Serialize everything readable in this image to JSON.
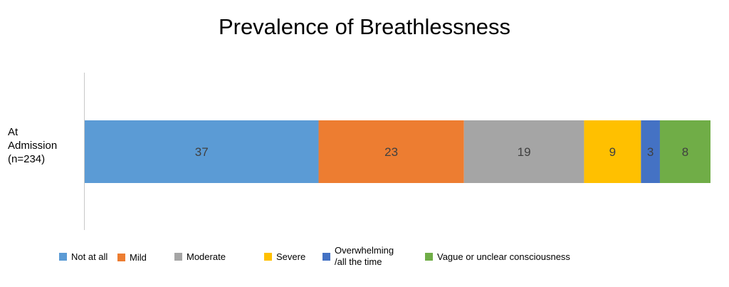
{
  "chart_data": {
    "type": "bar",
    "orientation": "horizontal",
    "stacked": true,
    "title": "Prevalence of Breathlessness",
    "categories": [
      "At Admission (n=234)"
    ],
    "category_label_lines": [
      "At",
      "Admission",
      "(n=234)"
    ],
    "series": [
      {
        "name": "Not at all",
        "values": [
          37
        ],
        "color": "#5b9bd5"
      },
      {
        "name": "Mild",
        "values": [
          23
        ],
        "color": "#ed7d31"
      },
      {
        "name": "Moderate",
        "values": [
          19
        ],
        "color": "#a5a5a5"
      },
      {
        "name": "Severe",
        "values": [
          9
        ],
        "color": "#ffc000"
      },
      {
        "name": "Overwhelming\n/all the time",
        "values": [
          3
        ],
        "color": "#4472c4"
      },
      {
        "name": "Vague or unclear consciousness",
        "values": [
          8
        ],
        "color": "#70ad47"
      }
    ],
    "data_labels": [
      "37",
      "23",
      "19",
      "9",
      "3",
      "8"
    ],
    "grid": false,
    "legend_position": "bottom"
  }
}
